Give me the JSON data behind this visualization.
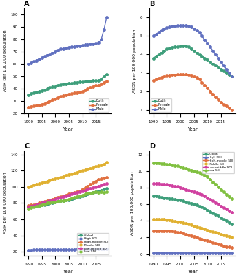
{
  "years": [
    1990,
    1991,
    1992,
    1993,
    1994,
    1995,
    1996,
    1997,
    1998,
    1999,
    2000,
    2001,
    2002,
    2003,
    2004,
    2005,
    2006,
    2007,
    2008,
    2009,
    2010,
    2011,
    2012,
    2013,
    2014,
    2015,
    2016,
    2017,
    2018,
    2019
  ],
  "panel_A": {
    "title": "A",
    "ylabel": "ASIR per 100,000 population",
    "xlabel": "Year",
    "both": [
      35,
      36,
      37,
      37.5,
      38,
      38.5,
      39,
      40,
      41,
      41.5,
      42,
      43,
      43.5,
      44,
      44,
      44.5,
      44.5,
      45,
      45,
      45.5,
      45.5,
      46,
      46,
      46,
      46.5,
      46.5,
      47,
      48,
      50,
      52
    ],
    "female": [
      25,
      25.5,
      26,
      26.5,
      27,
      27.5,
      28,
      29,
      30,
      31,
      32,
      33,
      34,
      34.5,
      35,
      35.5,
      36,
      36.5,
      37,
      37.5,
      38,
      39,
      40,
      41,
      42,
      43,
      43,
      44,
      45,
      46
    ],
    "male": [
      60,
      61,
      62,
      63,
      64,
      65,
      66,
      67,
      68,
      69,
      70,
      71,
      72,
      72.5,
      73,
      73.5,
      74,
      74,
      74.5,
      74.5,
      75,
      75.5,
      75.5,
      76,
      76,
      76.5,
      77,
      80,
      88,
      98
    ]
  },
  "panel_B": {
    "title": "B",
    "ylabel": "ASDR per 100,000 population",
    "xlabel": "Year",
    "both": [
      3.8,
      3.9,
      4.0,
      4.1,
      4.2,
      4.3,
      4.35,
      4.38,
      4.4,
      4.42,
      4.45,
      4.45,
      4.45,
      4.4,
      4.3,
      4.2,
      4.1,
      4.0,
      3.9,
      3.8,
      3.7,
      3.6,
      3.5,
      3.4,
      3.3,
      3.2,
      3.1,
      3.0,
      2.9,
      2.8
    ],
    "female": [
      2.6,
      2.65,
      2.7,
      2.75,
      2.8,
      2.85,
      2.87,
      2.88,
      2.9,
      2.92,
      2.93,
      2.93,
      2.92,
      2.9,
      2.85,
      2.8,
      2.75,
      2.65,
      2.5,
      2.35,
      2.2,
      2.0,
      1.85,
      1.7,
      1.55,
      1.4,
      1.3,
      1.2,
      1.1,
      1.0
    ],
    "male": [
      5.0,
      5.1,
      5.2,
      5.3,
      5.4,
      5.45,
      5.5,
      5.52,
      5.55,
      5.57,
      5.58,
      5.58,
      5.58,
      5.55,
      5.5,
      5.4,
      5.3,
      5.2,
      5.0,
      4.8,
      4.6,
      4.4,
      4.2,
      4.0,
      3.8,
      3.6,
      3.4,
      3.2,
      3.0,
      2.8
    ]
  },
  "panel_C": {
    "title": "C",
    "ylabel": "ASIR per 100,000 population",
    "xlabel": "Year",
    "global": [
      75,
      75.5,
      76,
      76.5,
      77,
      77.5,
      78,
      79,
      80,
      80.5,
      81,
      82,
      82.5,
      83,
      83.5,
      84,
      85,
      86,
      87,
      88,
      89,
      90,
      91,
      92,
      93,
      94,
      95,
      96,
      97,
      98
    ],
    "high_sdi": [
      22,
      22.2,
      22.3,
      22.4,
      22.5,
      22.5,
      22.5,
      22.5,
      22.5,
      22.5,
      22.5,
      22.6,
      22.6,
      22.7,
      22.8,
      22.8,
      22.9,
      23.0,
      23.1,
      23.2,
      23.3,
      23.4,
      23.5,
      23.5,
      23.5,
      23.5,
      23.5,
      23.5,
      23.5,
      23.5
    ],
    "high_mid_sdi": [
      77,
      77.5,
      78,
      79,
      80,
      81,
      82,
      83,
      84,
      85,
      86,
      87,
      88,
      89,
      90,
      91,
      92,
      93,
      94,
      95,
      97,
      99,
      101,
      103,
      105,
      107,
      109,
      110,
      111,
      112
    ],
    "middle_sdi": [
      100,
      101,
      102,
      103,
      104,
      105,
      106,
      107,
      108,
      109,
      110,
      111,
      112,
      113,
      114,
      115,
      116,
      117,
      118,
      119,
      120,
      121,
      122,
      123,
      124,
      125,
      126,
      127,
      128,
      130
    ],
    "low_mid_sdi": [
      75,
      76,
      77,
      78,
      79,
      80,
      81,
      82,
      83,
      84,
      85,
      86,
      87,
      88,
      89,
      90,
      91,
      92,
      93,
      94,
      95,
      96,
      97,
      98,
      99,
      100,
      101,
      102,
      103,
      104
    ],
    "low_sdi": [
      73,
      74,
      75,
      76,
      77,
      78,
      79,
      80,
      80.5,
      81,
      81.5,
      82,
      82.5,
      83,
      84,
      85,
      86,
      87,
      88,
      89,
      90,
      91,
      92,
      92.5,
      93,
      93.5,
      93,
      93.5,
      93,
      93.5
    ]
  },
  "panel_D": {
    "title": "D",
    "ylabel": "ASDR per 100,000 population",
    "xlabel": "Year",
    "global": [
      7.0,
      7.0,
      6.9,
      6.85,
      6.8,
      6.75,
      6.7,
      6.65,
      6.6,
      6.55,
      6.5,
      6.4,
      6.3,
      6.2,
      6.1,
      6.0,
      5.9,
      5.8,
      5.7,
      5.5,
      5.3,
      5.1,
      4.9,
      4.8,
      4.6,
      4.4,
      4.2,
      4.0,
      3.8,
      3.6
    ],
    "high_sdi": [
      0.12,
      0.12,
      0.12,
      0.12,
      0.12,
      0.12,
      0.12,
      0.12,
      0.12,
      0.12,
      0.12,
      0.12,
      0.12,
      0.12,
      0.12,
      0.12,
      0.12,
      0.12,
      0.12,
      0.12,
      0.12,
      0.12,
      0.12,
      0.12,
      0.12,
      0.12,
      0.12,
      0.12,
      0.12,
      0.12
    ],
    "high_mid_sdi": [
      2.8,
      2.8,
      2.8,
      2.8,
      2.8,
      2.8,
      2.8,
      2.75,
      2.7,
      2.65,
      2.6,
      2.5,
      2.4,
      2.3,
      2.2,
      2.1,
      2.0,
      1.9,
      1.8,
      1.7,
      1.6,
      1.5,
      1.4,
      1.3,
      1.2,
      1.1,
      1.0,
      0.9,
      0.85,
      0.8
    ],
    "middle_sdi": [
      4.2,
      4.2,
      4.2,
      4.2,
      4.2,
      4.15,
      4.1,
      4.0,
      3.95,
      3.9,
      3.85,
      3.8,
      3.7,
      3.6,
      3.5,
      3.4,
      3.3,
      3.2,
      3.1,
      3.0,
      2.9,
      2.8,
      2.7,
      2.6,
      2.5,
      2.4,
      2.3,
      2.2,
      2.1,
      2.0
    ],
    "low_mid_sdi": [
      8.5,
      8.5,
      8.5,
      8.45,
      8.4,
      8.4,
      8.3,
      8.25,
      8.2,
      8.15,
      8.0,
      7.9,
      7.8,
      7.7,
      7.6,
      7.5,
      7.4,
      7.3,
      7.2,
      7.0,
      6.8,
      6.6,
      6.4,
      6.2,
      6.0,
      5.8,
      5.6,
      5.4,
      5.2,
      5.0
    ],
    "low_sdi": [
      11.0,
      11.0,
      11.0,
      10.95,
      10.9,
      10.85,
      10.8,
      10.75,
      10.7,
      10.65,
      10.5,
      10.4,
      10.3,
      10.2,
      10.1,
      10.0,
      9.9,
      9.8,
      9.7,
      9.5,
      9.3,
      9.0,
      8.7,
      8.4,
      8.1,
      7.8,
      7.5,
      7.2,
      6.9,
      6.7
    ]
  },
  "colors": {
    "both": "#3d9e7a",
    "female": "#e07040",
    "male": "#6070c0",
    "global": "#3d9e7a",
    "high_sdi": "#6070c0",
    "high_mid_sdi": "#e07040",
    "middle_sdi": "#e0b030",
    "low_mid_sdi": "#d040a0",
    "low_sdi": "#80c040"
  },
  "marker": "o",
  "markersize": 2.5,
  "linewidth": 1.0
}
